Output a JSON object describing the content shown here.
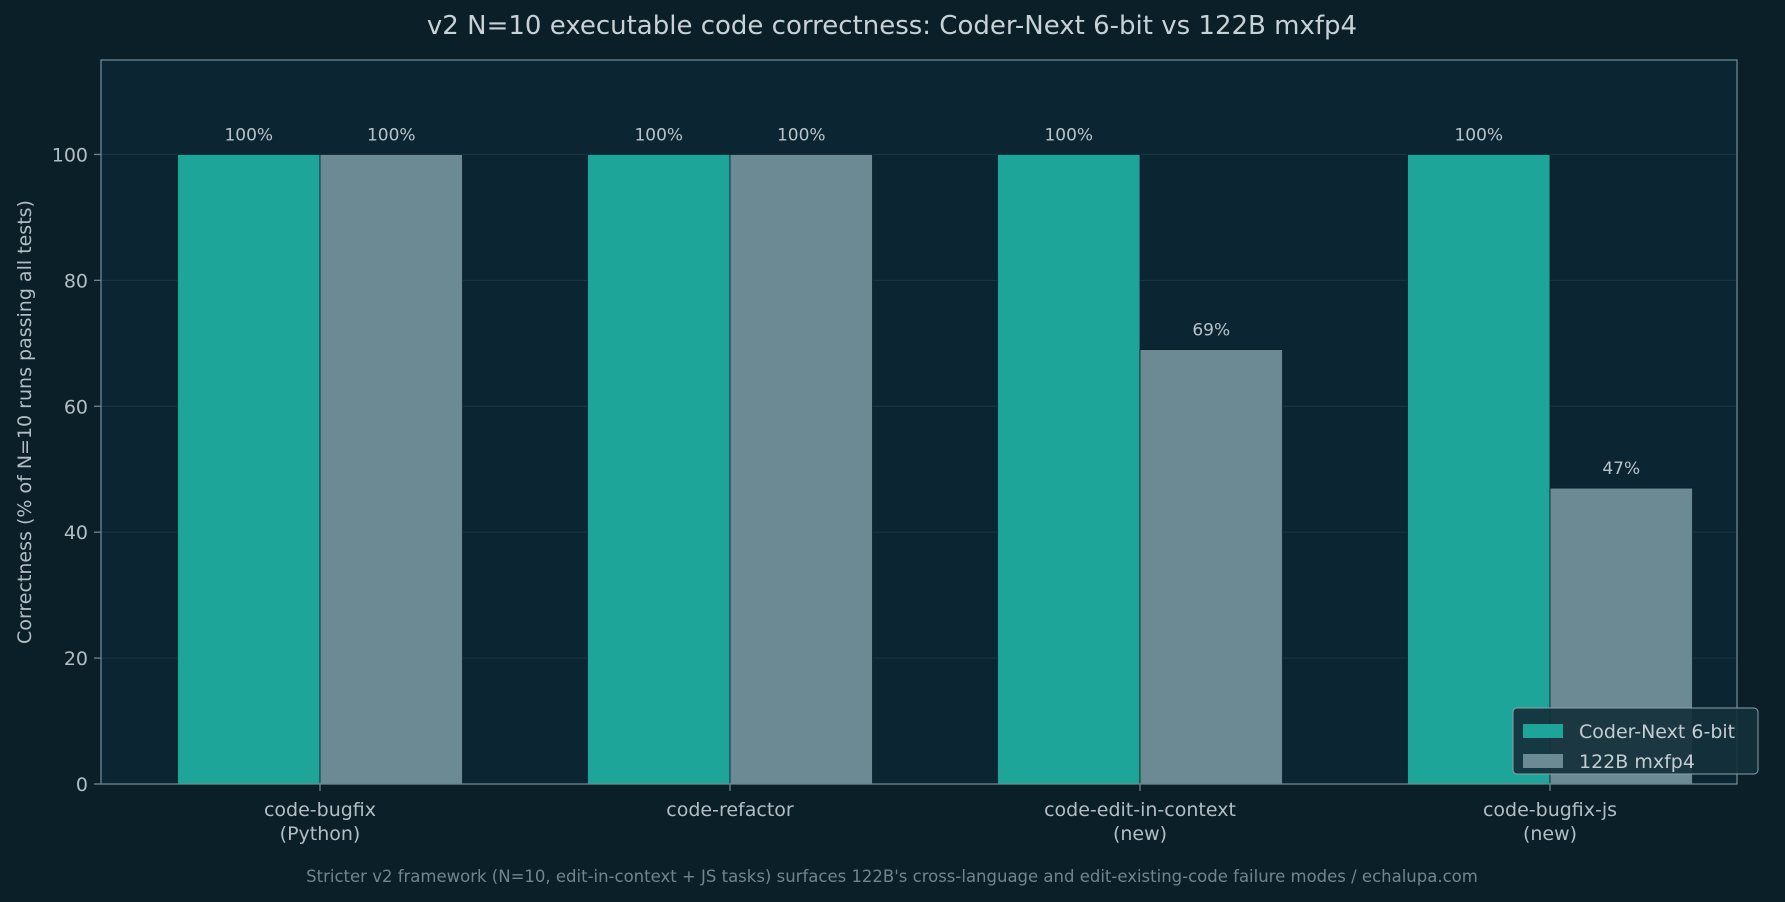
{
  "chart_data": {
    "type": "bar",
    "title": "v2 N=10 executable code correctness: Coder-Next 6-bit vs 122B mxfp4",
    "ylabel": "Correctness (% of N=10 runs passing all tests)",
    "xlabel": "",
    "ylim": [
      0,
      115
    ],
    "yticks": [
      0,
      20,
      40,
      60,
      80,
      100
    ],
    "grid": true,
    "legend_position": "bottom-right",
    "categories": [
      [
        "code-bugfix",
        "(Python)"
      ],
      [
        "code-refactor"
      ],
      [
        "code-edit-in-context",
        "(new)"
      ],
      [
        "code-bugfix-js",
        "(new)"
      ]
    ],
    "series": [
      {
        "name": "Coder-Next 6-bit",
        "color": "#1ea59a",
        "values": [
          100,
          100,
          100,
          100
        ],
        "labels": [
          "100%",
          "100%",
          "100%",
          "100%"
        ]
      },
      {
        "name": "122B mxfp4",
        "color": "#6b8a94",
        "values": [
          100,
          100,
          69,
          47
        ],
        "labels": [
          "100%",
          "100%",
          "69%",
          "47%"
        ]
      }
    ],
    "caption": "Stricter v2 framework (N=10, edit-in-context + JS tasks) surfaces 122B's cross-language and edit-existing-code failure modes  /  echalupa.com"
  },
  "colors": {
    "page_background": "#0a1f27",
    "plot_background": "#0c2532",
    "frame": "#6b8790",
    "grid": "#183844",
    "bar_edge": "#0b1e26",
    "legend_background": "#13303b",
    "legend_border": "#8aa3ab"
  }
}
